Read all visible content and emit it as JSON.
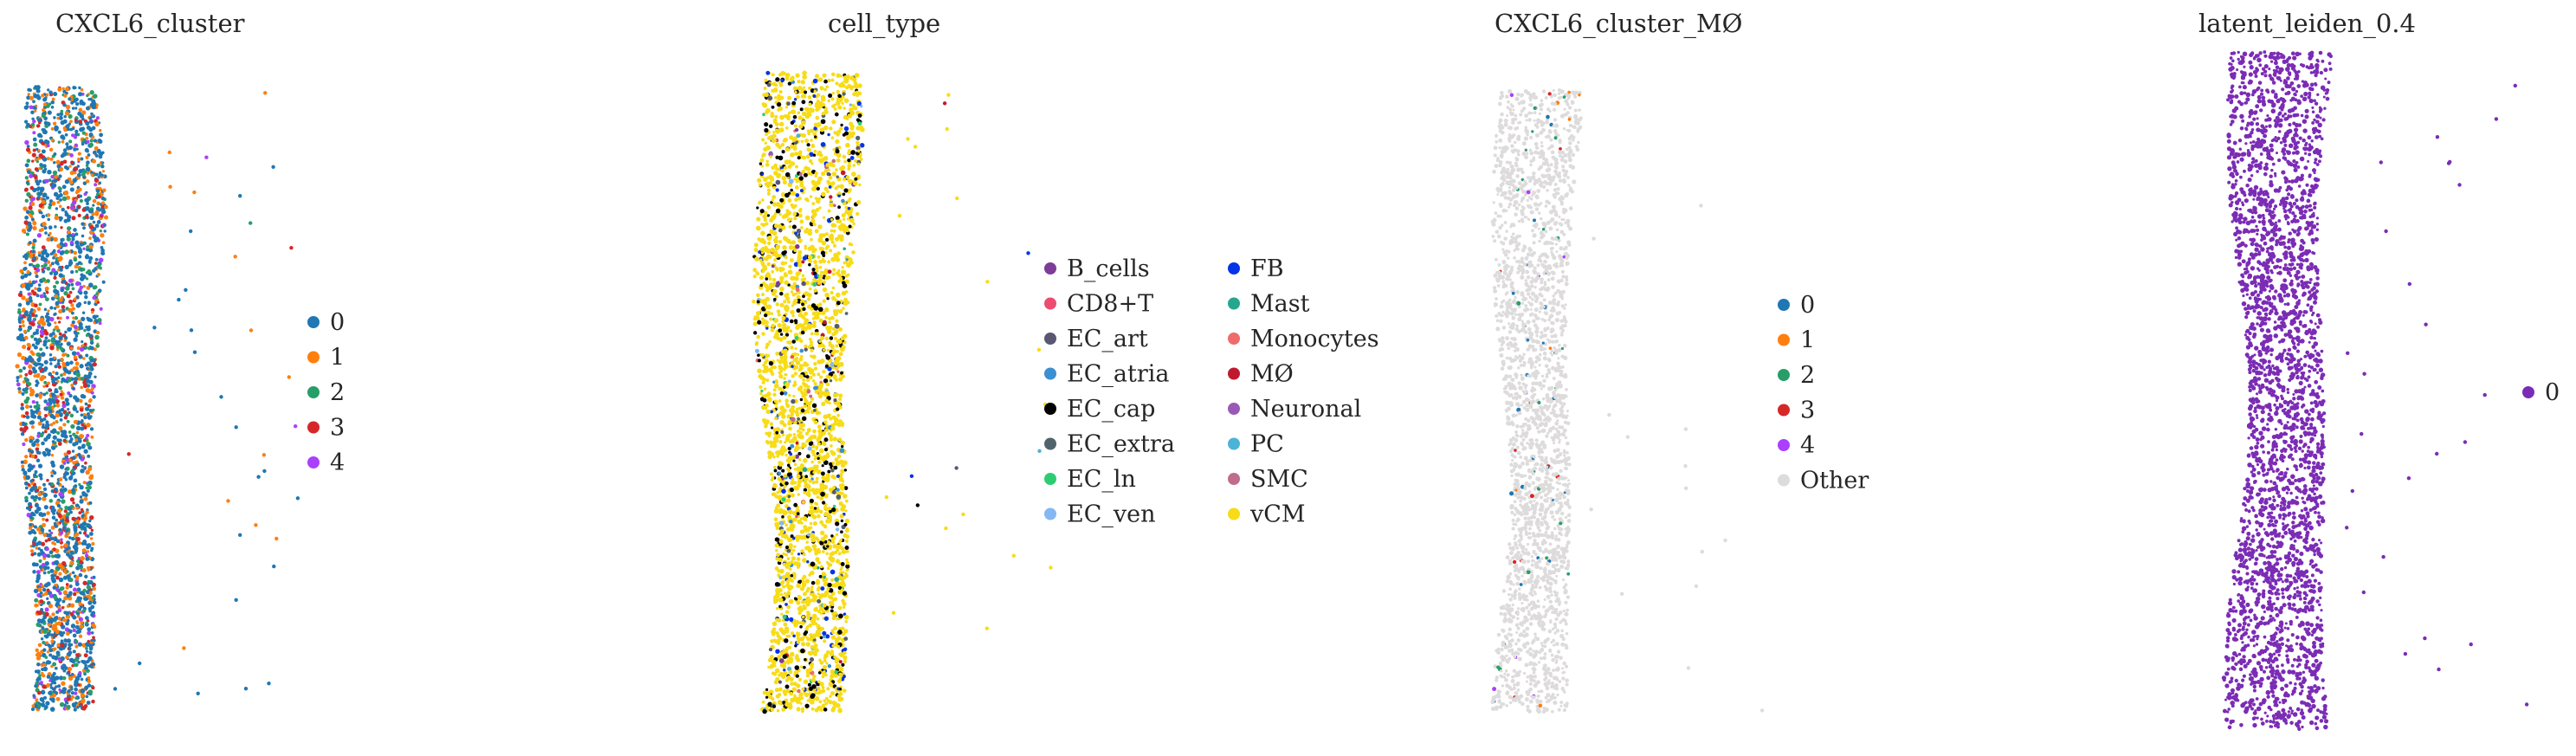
{
  "chart_data": [
    {
      "type": "scatter",
      "title": "CXCL6_cluster",
      "legend": {
        "placement": "right",
        "columns": [
          [
            {
              "label": "0",
              "color": "#1f77b4"
            },
            {
              "label": "1",
              "color": "#ff7f0e"
            },
            {
              "label": "2",
              "color": "#279e68"
            },
            {
              "label": "3",
              "color": "#d62728"
            },
            {
              "label": "4",
              "color": "#aa40fc"
            }
          ]
        ]
      },
      "category_weights": [
        0.5,
        0.22,
        0.12,
        0.1,
        0.06
      ],
      "grid": false,
      "axes_visible": false
    },
    {
      "type": "scatter",
      "title": "cell_type",
      "legend": {
        "placement": "right",
        "columns": [
          [
            {
              "label": "B_cells",
              "color": "#7d3c98"
            },
            {
              "label": "CD8+T",
              "color": "#ee4b72"
            },
            {
              "label": "EC_art",
              "color": "#5a5773"
            },
            {
              "label": "EC_atria",
              "color": "#3c8fd0"
            },
            {
              "label": "EC_cap",
              "color": "#000000"
            },
            {
              "label": "EC_extra",
              "color": "#51636b"
            },
            {
              "label": "EC_ln",
              "color": "#2ecc71"
            },
            {
              "label": "EC_ven",
              "color": "#85b7f2"
            }
          ],
          [
            {
              "label": "FB",
              "color": "#0533e9"
            },
            {
              "label": "Mast",
              "color": "#26a78b"
            },
            {
              "label": "Monocytes",
              "color": "#f06b6b"
            },
            {
              "label": "MØ",
              "color": "#c0192f"
            },
            {
              "label": "Neuronal",
              "color": "#9b59b6"
            },
            {
              "label": "PC",
              "color": "#4cb3d7"
            },
            {
              "label": "SMC",
              "color": "#c06c8d"
            },
            {
              "label": "vCM",
              "color": "#f7dc17"
            }
          ]
        ]
      },
      "category_weights": [
        0.003,
        0.003,
        0.01,
        0.006,
        0.12,
        0.01,
        0.004,
        0.006,
        0.03,
        0.003,
        0.003,
        0.004,
        0.002,
        0.004,
        0.003,
        0.78
      ],
      "grid": false,
      "axes_visible": false
    },
    {
      "type": "scatter",
      "title": "CXCL6_cluster_MØ",
      "legend": {
        "placement": "right",
        "columns": [
          [
            {
              "label": "0",
              "color": "#1f77b4"
            },
            {
              "label": "1",
              "color": "#ff7f0e"
            },
            {
              "label": "2",
              "color": "#279e68"
            },
            {
              "label": "3",
              "color": "#d62728"
            },
            {
              "label": "4",
              "color": "#aa40fc"
            },
            {
              "label": "Other",
              "color": "#dddbdb"
            }
          ]
        ]
      },
      "category_weights": [
        0.012,
        0.006,
        0.008,
        0.006,
        0.004,
        0.964
      ],
      "grid": false,
      "axes_visible": false
    },
    {
      "type": "scatter",
      "title": "latent_leiden_0.4",
      "legend": {
        "placement": "right",
        "columns": [
          [
            {
              "label": "0",
              "color": "#7b2cb5"
            }
          ]
        ]
      },
      "category_weights": [
        1.0
      ],
      "grid": false,
      "axes_visible": false
    }
  ]
}
